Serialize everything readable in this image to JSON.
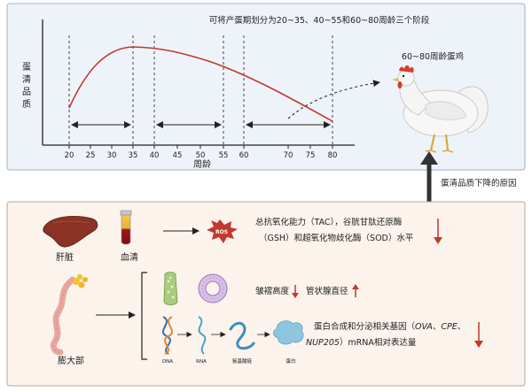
{
  "top_panel": {
    "title": "可将产蛋期划分为20~35、40~55和60~80周龄三个阶段",
    "y_label_chars": [
      "蛋",
      "清",
      "品",
      "质"
    ],
    "x_label": "周龄",
    "x_ticks": [
      "20",
      "25",
      "30",
      "35",
      "40",
      "45",
      "50",
      "55",
      "60",
      "70",
      "75",
      "80"
    ],
    "hen_label": "60~80周龄蛋鸡",
    "background": "#eef3fa",
    "curve_color": "#c0392b"
  },
  "connector": {
    "label": "蛋清品质下降的原因"
  },
  "bottom_panel": {
    "liver_label": "肝脏",
    "serum_label": "血清",
    "ros_label": "ROS",
    "antioxidant_line1": "总抗氧化能力（TAC），谷胱甘肽还原酶",
    "antioxidant_line2": "（GSH）和超氧化物歧化酶（SOD）水平",
    "magnum_label": "膨大部",
    "fold_text": "皱褶高度",
    "gland_text": "管状腺直径",
    "gene_line1_prefix": "蛋白合成和分泌相关基因（",
    "gene_OVA": "OVA",
    "gene_sep1": "、",
    "gene_CPE": "CPE",
    "gene_sep2": "、",
    "gene_NUP205": "NUP205",
    "gene_line2_suffix": "）mRNA相对表达量",
    "flow_dna": "DNA",
    "flow_rna": "RNA",
    "flow_aa": "氨基酸链",
    "flow_protein": "蛋白",
    "background": "#fbf3ec",
    "down_arrow_color": "#c0392b"
  }
}
